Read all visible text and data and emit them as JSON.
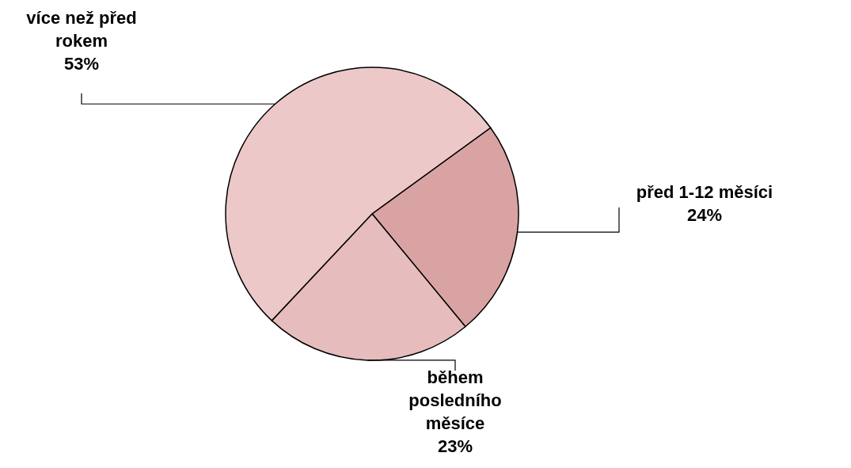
{
  "chart_data": {
    "type": "pie",
    "categories": [
      "před 1-12 měsíci",
      "během posledního měsíce",
      "více než před rokem"
    ],
    "values": [
      24,
      23,
      53
    ],
    "value_labels": [
      "24%",
      "23%",
      "53%"
    ],
    "colors": [
      "#d9a3a3",
      "#e6bcbc",
      "#ecc8c8"
    ]
  }
}
